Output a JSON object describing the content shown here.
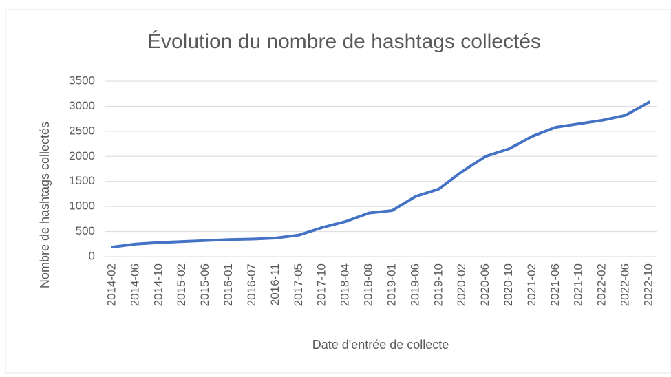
{
  "chart_data": {
    "type": "line",
    "title": "Évolution du nombre de hashtags collectés",
    "x_label": "Date d'entrée de collecte",
    "y_label": "Nombre de hashtags collectés",
    "categories": [
      "2014-02",
      "2014-06",
      "2014-10",
      "2015-02",
      "2015-06",
      "2016-01",
      "2016-07",
      "2016-11",
      "2017-05",
      "2017-10",
      "2018-04",
      "2018-08",
      "2019-01",
      "2019-06",
      "2019-10",
      "2020-02",
      "2020-06",
      "2020-10",
      "2021-02",
      "2021-06",
      "2021-10",
      "2022-02",
      "2022-06",
      "2022-10"
    ],
    "series": [
      {
        "name": "Nombre de hashtags collectés",
        "color": "#4472c4",
        "values": [
          190,
          250,
          280,
          300,
          320,
          340,
          350,
          370,
          430,
          580,
          700,
          870,
          920,
          1200,
          1350,
          1700,
          2000,
          2150,
          2400,
          2580,
          2650,
          2720,
          2820,
          3080
        ]
      }
    ],
    "ylim": [
      0,
      3500
    ],
    "yticks": [
      0,
      500,
      1000,
      1500,
      2000,
      2500,
      3000,
      3500
    ],
    "grid": true
  }
}
